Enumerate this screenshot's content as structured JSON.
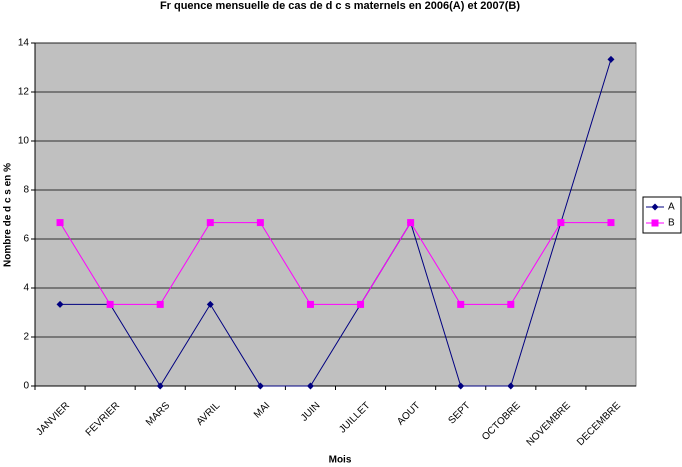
{
  "chart_data": {
    "type": "line",
    "title": "Fr  quence mensuelle de cas de d  c  s maternels en 2006(A) et 2007(B)",
    "x_label": "Mois",
    "y_label": "Nombre de d c s en %",
    "categories": [
      "JANVIER",
      "FEVRIER",
      "MARS",
      "AVRIL",
      "MAI",
      "JUIN",
      "JUILLET",
      "AOUT",
      "SEPT",
      "OCTOBRE",
      "NOVEMBRE",
      "DECEMBRE"
    ],
    "series": [
      {
        "name": "A",
        "color": "#000080",
        "marker": "diamond",
        "values": [
          3.33,
          3.33,
          0,
          3.33,
          0,
          0,
          3.33,
          6.67,
          0,
          0,
          6.67,
          13.33
        ]
      },
      {
        "name": "B",
        "color": "#ff00ff",
        "marker": "square",
        "values": [
          6.67,
          3.33,
          3.33,
          6.67,
          6.67,
          3.33,
          3.33,
          6.67,
          3.33,
          3.33,
          6.67,
          6.67
        ]
      }
    ],
    "ylim": [
      0,
      14
    ],
    "yticks": [
      0,
      2,
      4,
      6,
      8,
      10,
      12,
      14
    ],
    "grid": true,
    "legend": "right",
    "plot_background": "#c0c0c0"
  }
}
